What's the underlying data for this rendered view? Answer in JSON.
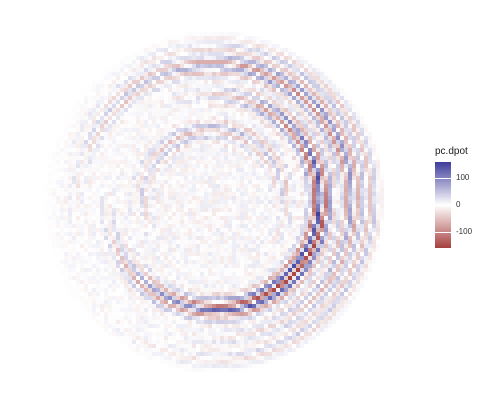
{
  "chart_data": {
    "type": "heatmap",
    "title": "",
    "xlabel": "",
    "ylabel": "",
    "description_visible": "polar field map with spiral wave bands",
    "legend": {
      "title": "pc.dpot",
      "ticks": [
        {
          "value": 100,
          "label": "100"
        },
        {
          "value": 0,
          "label": "0"
        },
        {
          "value": -100,
          "label": "-100"
        }
      ],
      "range": [
        -160,
        160
      ],
      "colors": {
        "low": "#a6403f",
        "mid": "#ffffff",
        "high": "#3d3c9b"
      }
    },
    "rings": [
      {
        "radius_frac": 0.62,
        "amplitude": 160,
        "phase": 0.0
      },
      {
        "radius_frac": 0.8,
        "amplitude": 90,
        "phase": 1.3
      },
      {
        "radius_frac": 0.42,
        "amplitude": 55,
        "phase": 2.1
      },
      {
        "radius_frac": 0.95,
        "amplitude": 70,
        "phase": 0.6
      }
    ]
  }
}
